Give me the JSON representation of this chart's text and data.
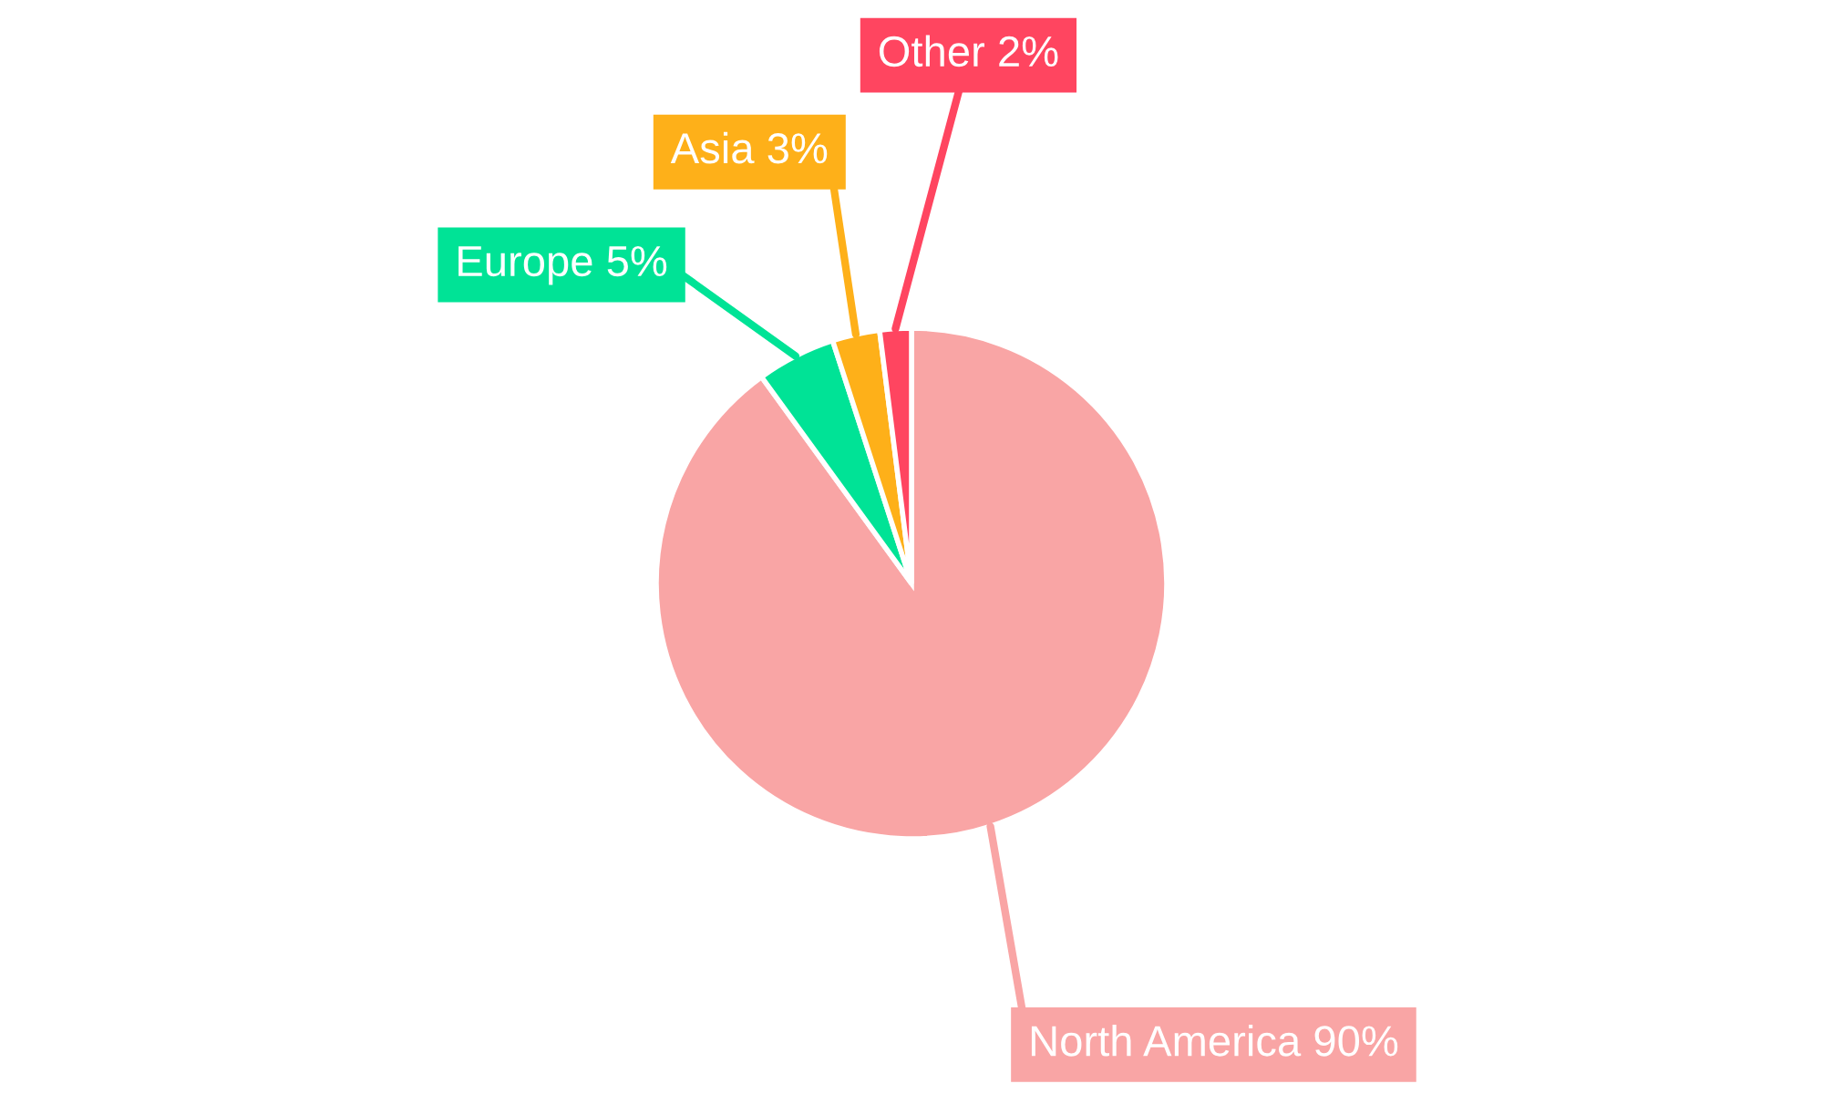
{
  "chart_data": {
    "type": "pie",
    "categories": [
      "North America",
      "Europe",
      "Asia",
      "Other"
    ],
    "values": [
      90,
      5,
      3,
      2
    ],
    "colors": [
      "#f9a5a5",
      "#00e396",
      "#feb019",
      "#ff4560"
    ],
    "value_labels": [
      "90%",
      "5%",
      "3%",
      "2%"
    ]
  }
}
